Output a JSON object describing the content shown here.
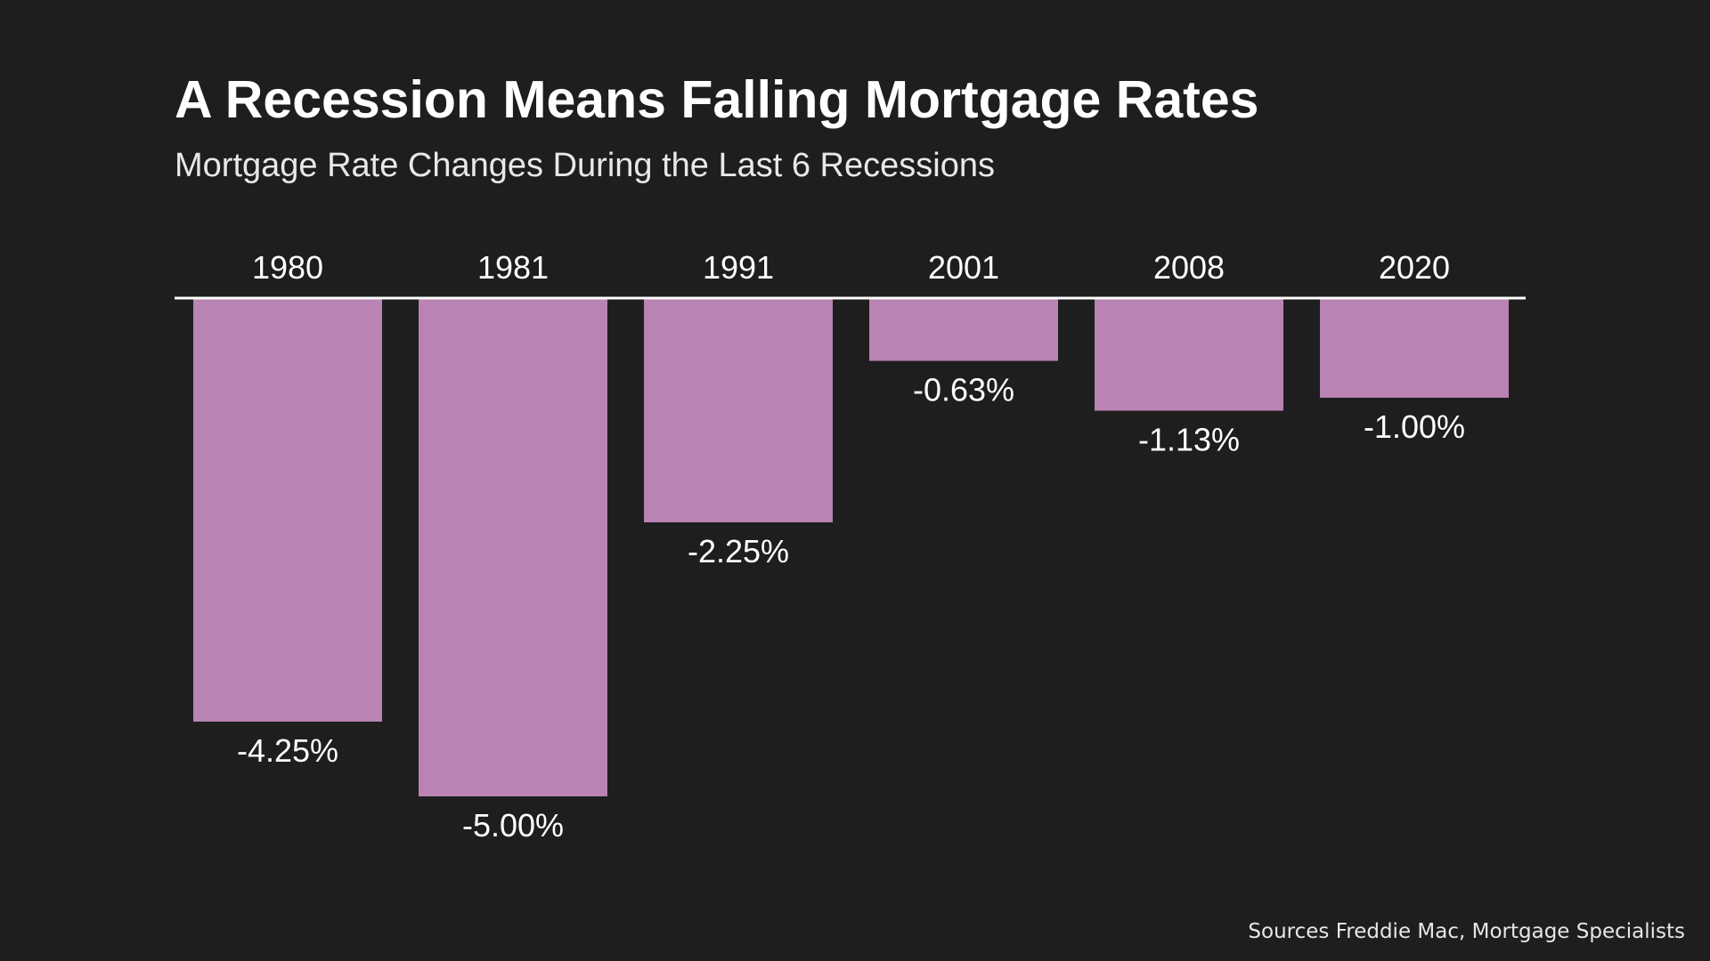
{
  "header": {
    "title": "A Recession Means Falling Mortgage Rates",
    "subtitle": "Mortgage Rate Changes During the Last 6 Recessions"
  },
  "footer": {
    "source": "Sources Freddie Mac, Mortgage Specialists"
  },
  "colors": {
    "background": "#1e1e1e",
    "bar": "#b983b3",
    "text": "#ffffff",
    "baseline": "#ffffff"
  },
  "chart_data": {
    "type": "bar",
    "title": "A Recession Means Falling Mortgage Rates",
    "subtitle": "Mortgage Rate Changes During the Last 6 Recessions",
    "xlabel": "",
    "ylabel": "",
    "categories": [
      "1980",
      "1981",
      "1991",
      "2001",
      "2008",
      "2020"
    ],
    "values": [
      -4.25,
      -5.0,
      -2.25,
      -0.63,
      -1.13,
      -1.0
    ],
    "data_labels": [
      "-4.25%",
      "-5.00%",
      "-2.25%",
      "-0.63%",
      "-1.13%",
      "-1.00%"
    ],
    "ylim": [
      -5.0,
      0
    ],
    "category_axis_position": "top",
    "grid": false,
    "legend": "none"
  }
}
